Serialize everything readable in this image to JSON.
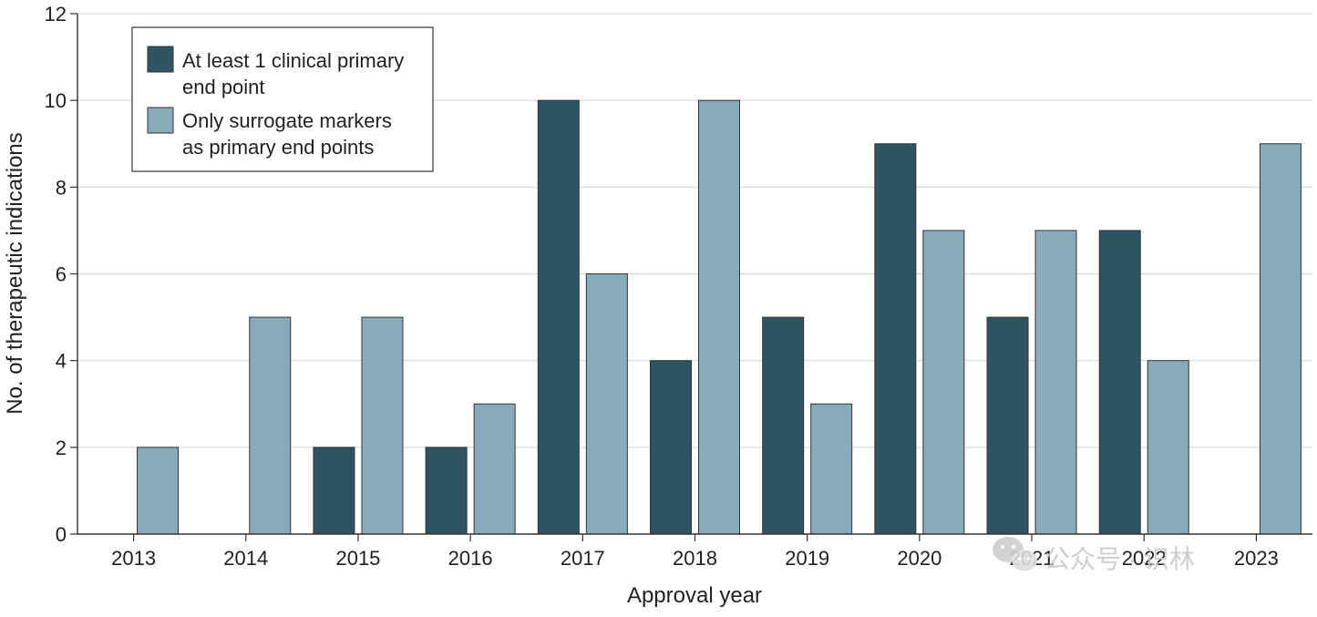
{
  "chart_data": {
    "type": "bar",
    "categories": [
      "2013",
      "2014",
      "2015",
      "2016",
      "2017",
      "2018",
      "2019",
      "2020",
      "2021",
      "2022",
      "2023"
    ],
    "series": [
      {
        "name": "At least 1 clinical primary end point",
        "name_lines": [
          "At least 1 clinical primary",
          "end point"
        ],
        "color": "#2e5361",
        "values": [
          0,
          0,
          2,
          2,
          10,
          4,
          5,
          9,
          5,
          7,
          0
        ]
      },
      {
        "name": "Only surrogate markers as primary end points",
        "name_lines": [
          "Only surrogate markers",
          "as primary end points"
        ],
        "color": "#88aaba",
        "values": [
          2,
          5,
          5,
          3,
          6,
          10,
          3,
          7,
          7,
          4,
          9
        ]
      }
    ],
    "xlabel": "Approval year",
    "ylabel": "No. of therapeutic indications",
    "ylim": [
      0,
      12
    ],
    "yticks": [
      "0",
      "2",
      "4",
      "6",
      "8",
      "10",
      "12"
    ],
    "grid": true,
    "legend_position": "top-left",
    "gridline_color": "#d9d9d9",
    "bar_stroke_color": "#333333"
  },
  "watermark": {
    "text": "公众号 · 识林",
    "icon": "wechat-icon",
    "color": "#c9c9c9"
  }
}
